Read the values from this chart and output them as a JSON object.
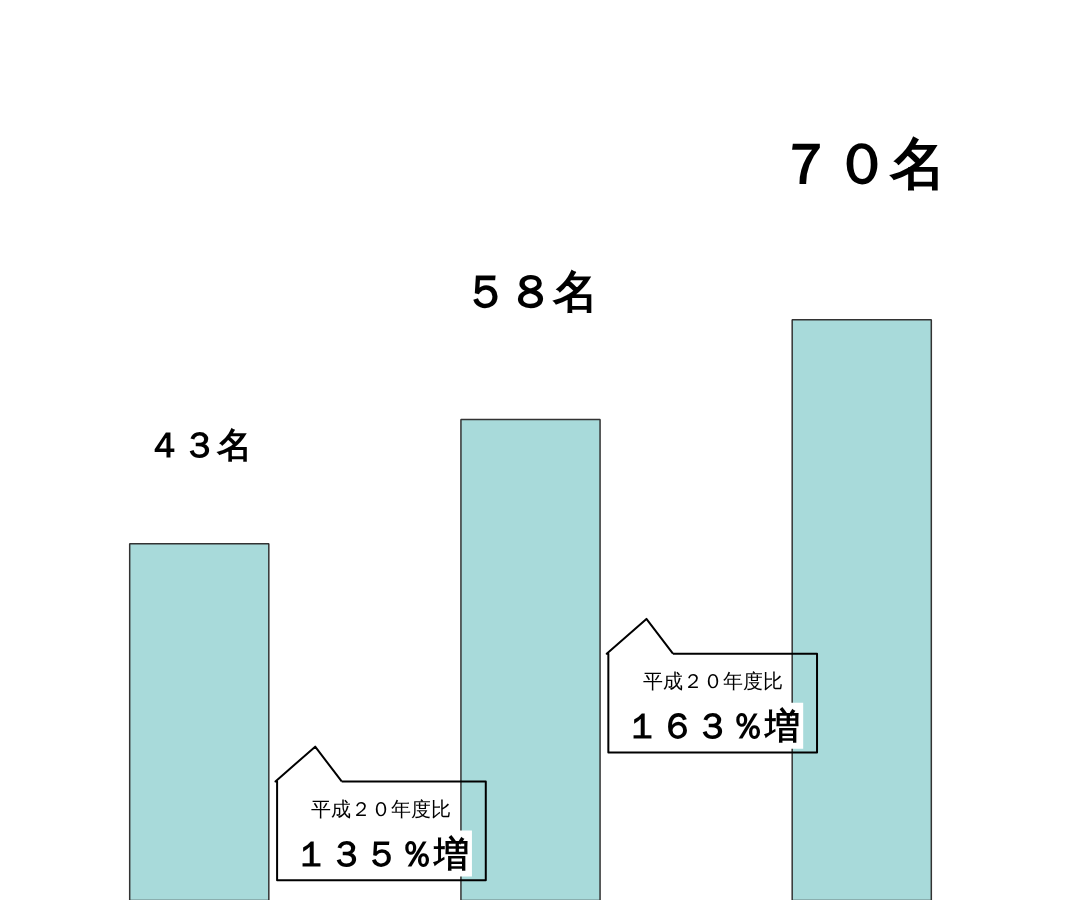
{
  "chart_data": {
    "type": "bar",
    "categories": [
      null,
      null,
      null
    ],
    "values": [
      43,
      58,
      70
    ],
    "color": "#a8dada",
    "value_labels": [
      "４３名",
      "５８名",
      "７０名"
    ],
    "annotations": [
      "平成２０年度比",
      "１３５％増",
      "平成２０年度比",
      "１６３％増"
    ],
    "grid": false
  }
}
